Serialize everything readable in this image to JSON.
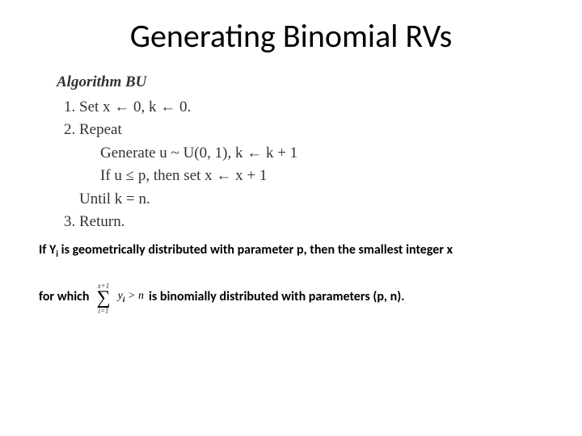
{
  "title": "Generating Binomial RVs",
  "algorithm": {
    "heading": "Algorithm BU",
    "step1": "Set x ← 0, k ← 0.",
    "step2": "Repeat",
    "step2a": "Generate u ~ U(0, 1), k ← k + 1",
    "step2b": "If u ≤ p, then set x ← x + 1",
    "step2c": "Until k = n.",
    "step3": "Return."
  },
  "note": {
    "line1_a": "If Y",
    "line1_sub": "i",
    "line1_b": " is geometrically distributed with parameter p, then the smallest integer x",
    "line2_a": "for which",
    "sum_top": "x+1",
    "sum_bottom": "i=1",
    "sum_body_a": "y",
    "sum_body_sub": "i",
    "sum_body_b": " > n",
    "line2_b": "is binomially distributed with parameters (p, n)."
  },
  "style": {
    "bg": "#ffffff",
    "title_fontsize": 40,
    "title_color": "#000000",
    "algo_font": "Times New Roman",
    "algo_fontsize": 19,
    "note_fontsize": 16,
    "note_weight": 600
  }
}
